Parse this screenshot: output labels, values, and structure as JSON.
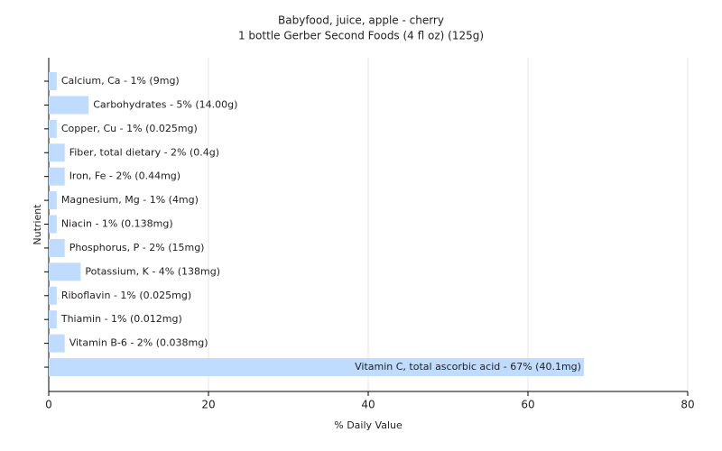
{
  "chart_data": {
    "type": "bar",
    "orientation": "horizontal",
    "title": "Babyfood, juice, apple - cherry",
    "subtitle": "1 bottle Gerber Second Foods (4 fl oz) (125g)",
    "xlabel": "% Daily Value",
    "ylabel": "Nutrient",
    "values": [
      1,
      5,
      1,
      2,
      2,
      1,
      1,
      2,
      4,
      1,
      1,
      2,
      67
    ],
    "value_labels": [
      "Calcium, Ca - 1% (9mg)",
      "Carbohydrates - 5% (14.00g)",
      "Copper, Cu - 1% (0.025mg)",
      "Fiber, total dietary - 2% (0.4g)",
      "Iron, Fe - 2% (0.44mg)",
      "Magnesium, Mg - 1% (4mg)",
      "Niacin - 1% (0.138mg)",
      "Phosphorus, P - 2% (15mg)",
      "Potassium, K - 4% (138mg)",
      "Riboflavin - 1% (0.025mg)",
      "Thiamin - 1% (0.012mg)",
      "Vitamin B-6 - 2% (0.038mg)",
      "Vitamin C, total ascorbic acid - 67% (40.1mg)"
    ],
    "color": "#bfdcff",
    "xlim": [
      0,
      80
    ],
    "xticks": [
      0,
      20,
      40,
      60,
      80
    ],
    "grid": true
  }
}
